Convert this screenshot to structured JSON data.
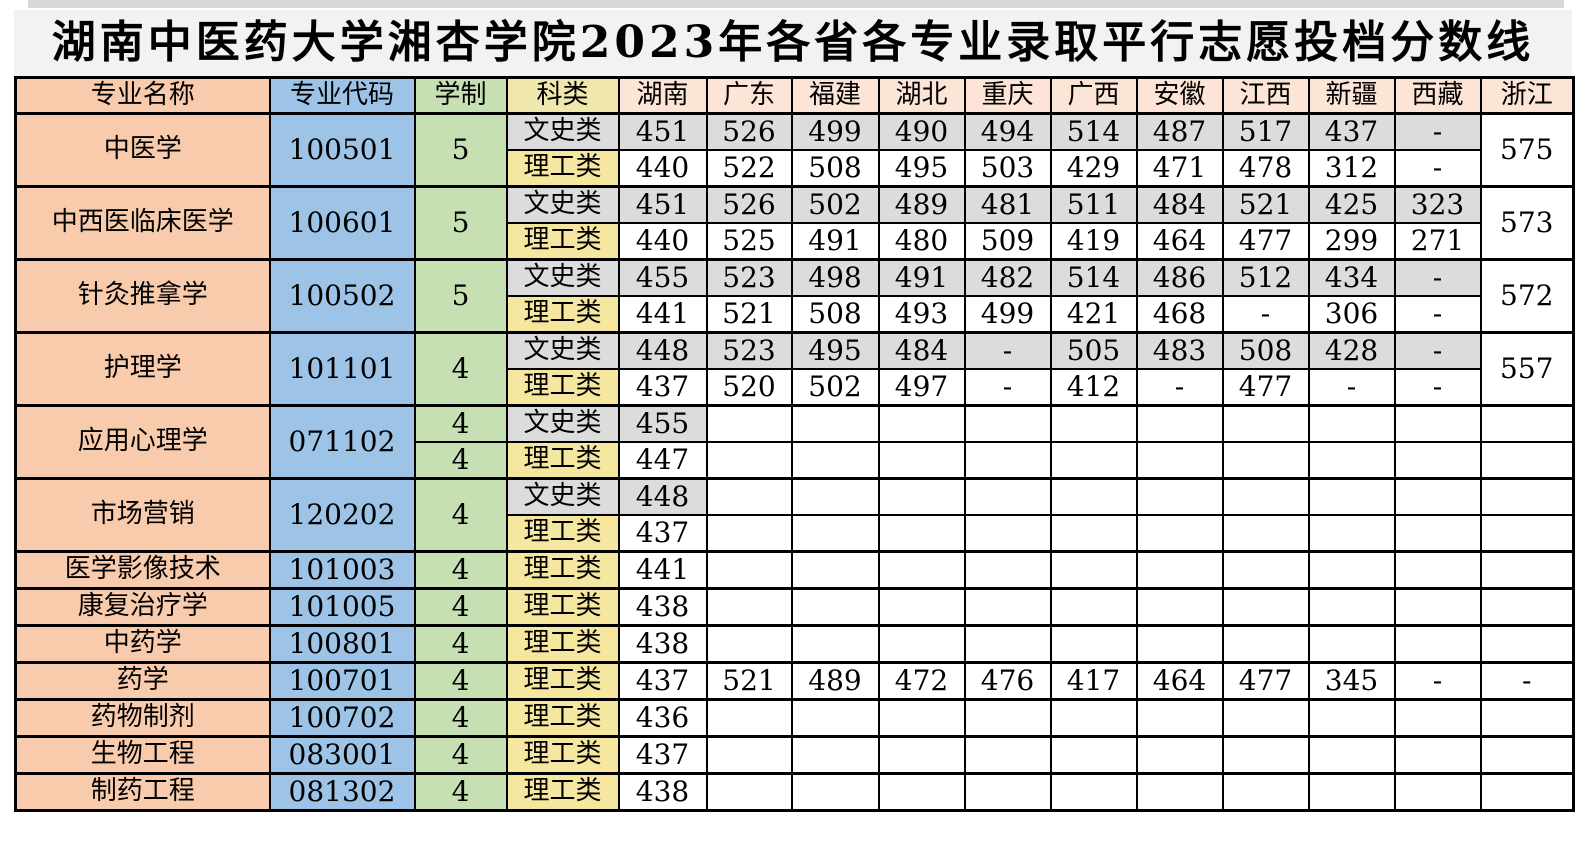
{
  "title": "湖南中医药大学湘杏学院2023年各省各专业录取平行志愿投档分数线",
  "header": {
    "cells": [
      "专业名称",
      "专业代码",
      "学制",
      "科类",
      "湖南",
      "广东",
      "福建",
      "湖北",
      "重庆",
      "广西",
      "安徽",
      "江西",
      "新疆",
      "西藏",
      "浙江"
    ]
  },
  "colors": {
    "major_name_bg": "#f8cbad",
    "major_code_bg": "#9dc3e6",
    "duration_bg": "#c6e0b4",
    "category_header_bg": "#efe7ad",
    "province_header_bg": "#fce4d6",
    "liberal_arts_bg": "#dcdcdc",
    "science_bg": "#f6e7a0",
    "title_bg": "#f2f2f2",
    "border": "#000000",
    "text": "#000000"
  },
  "majors": [
    {
      "name": "中医学",
      "code": "100501",
      "durations": [
        "5"
      ],
      "duration_merged": true,
      "zj_merged": true,
      "zj_values": [
        "575"
      ],
      "rows": [
        {
          "category": "文史类",
          "type": "wenshi",
          "scores": [
            "451",
            "526",
            "499",
            "490",
            "494",
            "514",
            "487",
            "517",
            "437",
            "-"
          ]
        },
        {
          "category": "理工类",
          "type": "ligong",
          "scores": [
            "440",
            "522",
            "508",
            "495",
            "503",
            "429",
            "471",
            "478",
            "312",
            "-"
          ]
        }
      ]
    },
    {
      "name": "中西医临床医学",
      "code": "100601",
      "durations": [
        "5"
      ],
      "duration_merged": true,
      "zj_merged": true,
      "zj_values": [
        "573"
      ],
      "rows": [
        {
          "category": "文史类",
          "type": "wenshi",
          "scores": [
            "451",
            "526",
            "502",
            "489",
            "481",
            "511",
            "484",
            "521",
            "425",
            "323"
          ]
        },
        {
          "category": "理工类",
          "type": "ligong",
          "scores": [
            "440",
            "525",
            "491",
            "480",
            "509",
            "419",
            "464",
            "477",
            "299",
            "271"
          ]
        }
      ]
    },
    {
      "name": "针灸推拿学",
      "code": "100502",
      "durations": [
        "5"
      ],
      "duration_merged": true,
      "zj_merged": true,
      "zj_values": [
        "572"
      ],
      "rows": [
        {
          "category": "文史类",
          "type": "wenshi",
          "scores": [
            "455",
            "523",
            "498",
            "491",
            "482",
            "514",
            "486",
            "512",
            "434",
            "-"
          ]
        },
        {
          "category": "理工类",
          "type": "ligong",
          "scores": [
            "441",
            "521",
            "508",
            "493",
            "499",
            "421",
            "468",
            "-",
            "306",
            "-"
          ]
        }
      ]
    },
    {
      "name": "护理学",
      "code": "101101",
      "durations": [
        "4"
      ],
      "duration_merged": true,
      "zj_merged": true,
      "zj_values": [
        "557"
      ],
      "rows": [
        {
          "category": "文史类",
          "type": "wenshi",
          "scores": [
            "448",
            "523",
            "495",
            "484",
            "-",
            "505",
            "483",
            "508",
            "428",
            "-"
          ]
        },
        {
          "category": "理工类",
          "type": "ligong",
          "scores": [
            "437",
            "520",
            "502",
            "497",
            "-",
            "412",
            "-",
            "477",
            "-",
            "-"
          ]
        }
      ]
    },
    {
      "name": "应用心理学",
      "code": "071102",
      "durations": [
        "4",
        "4"
      ],
      "duration_merged": false,
      "zj_merged": false,
      "zj_values": [
        "",
        ""
      ],
      "rows": [
        {
          "category": "文史类",
          "type": "wenshi",
          "scores": [
            "455",
            "",
            "",
            "",
            "",
            "",
            "",
            "",
            "",
            ""
          ]
        },
        {
          "category": "理工类",
          "type": "ligong",
          "scores": [
            "447",
            "",
            "",
            "",
            "",
            "",
            "",
            "",
            "",
            ""
          ]
        }
      ]
    },
    {
      "name": "市场营销",
      "code": "120202",
      "durations": [
        "4"
      ],
      "duration_merged": true,
      "zj_merged": false,
      "zj_values": [
        "",
        ""
      ],
      "rows": [
        {
          "category": "文史类",
          "type": "wenshi",
          "scores": [
            "448",
            "",
            "",
            "",
            "",
            "",
            "",
            "",
            "",
            ""
          ]
        },
        {
          "category": "理工类",
          "type": "ligong",
          "scores": [
            "437",
            "",
            "",
            "",
            "",
            "",
            "",
            "",
            "",
            ""
          ]
        }
      ]
    },
    {
      "name": "医学影像技术",
      "code": "101003",
      "durations": [
        "4"
      ],
      "duration_merged": true,
      "zj_merged": false,
      "zj_values": [
        ""
      ],
      "rows": [
        {
          "category": "理工类",
          "type": "ligong",
          "scores": [
            "441",
            "",
            "",
            "",
            "",
            "",
            "",
            "",
            "",
            ""
          ]
        }
      ]
    },
    {
      "name": "康复治疗学",
      "code": "101005",
      "durations": [
        "4"
      ],
      "duration_merged": true,
      "zj_merged": false,
      "zj_values": [
        ""
      ],
      "rows": [
        {
          "category": "理工类",
          "type": "ligong",
          "scores": [
            "438",
            "",
            "",
            "",
            "",
            "",
            "",
            "",
            "",
            ""
          ]
        }
      ]
    },
    {
      "name": "中药学",
      "code": "100801",
      "durations": [
        "4"
      ],
      "duration_merged": true,
      "zj_merged": false,
      "zj_values": [
        ""
      ],
      "rows": [
        {
          "category": "理工类",
          "type": "ligong",
          "scores": [
            "438",
            "",
            "",
            "",
            "",
            "",
            "",
            "",
            "",
            ""
          ]
        }
      ]
    },
    {
      "name": "药学",
      "code": "100701",
      "durations": [
        "4"
      ],
      "duration_merged": true,
      "zj_merged": false,
      "zj_values": [
        "-"
      ],
      "rows": [
        {
          "category": "理工类",
          "type": "ligong",
          "scores": [
            "437",
            "521",
            "489",
            "472",
            "476",
            "417",
            "464",
            "477",
            "345",
            "-"
          ]
        }
      ]
    },
    {
      "name": "药物制剂",
      "code": "100702",
      "durations": [
        "4"
      ],
      "duration_merged": true,
      "zj_merged": false,
      "zj_values": [
        ""
      ],
      "rows": [
        {
          "category": "理工类",
          "type": "ligong",
          "scores": [
            "436",
            "",
            "",
            "",
            "",
            "",
            "",
            "",
            "",
            ""
          ]
        }
      ]
    },
    {
      "name": "生物工程",
      "code": "083001",
      "durations": [
        "4"
      ],
      "duration_merged": true,
      "zj_merged": false,
      "zj_values": [
        ""
      ],
      "rows": [
        {
          "category": "理工类",
          "type": "ligong",
          "scores": [
            "437",
            "",
            "",
            "",
            "",
            "",
            "",
            "",
            "",
            ""
          ]
        }
      ]
    },
    {
      "name": "制药工程",
      "code": "081302",
      "durations": [
        "4"
      ],
      "duration_merged": true,
      "zj_merged": false,
      "zj_values": [
        ""
      ],
      "rows": [
        {
          "category": "理工类",
          "type": "ligong",
          "scores": [
            "438",
            "",
            "",
            "",
            "",
            "",
            "",
            "",
            "",
            ""
          ]
        }
      ]
    }
  ],
  "chart_data": {
    "type": "table",
    "title": "湖南中医药大学湘杏学院2023年各省各专业录取平行志愿投档分数线",
    "columns": [
      "专业名称",
      "专业代码",
      "学制",
      "科类",
      "湖南",
      "广东",
      "福建",
      "湖北",
      "重庆",
      "广西",
      "安徽",
      "江西",
      "新疆",
      "西藏",
      "浙江"
    ],
    "rows": [
      [
        "中医学",
        "100501",
        "5",
        "文史类",
        "451",
        "526",
        "499",
        "490",
        "494",
        "514",
        "487",
        "517",
        "437",
        "-",
        "575"
      ],
      [
        "中医学",
        "100501",
        "5",
        "理工类",
        "440",
        "522",
        "508",
        "495",
        "503",
        "429",
        "471",
        "478",
        "312",
        "-",
        "575"
      ],
      [
        "中西医临床医学",
        "100601",
        "5",
        "文史类",
        "451",
        "526",
        "502",
        "489",
        "481",
        "511",
        "484",
        "521",
        "425",
        "323",
        "573"
      ],
      [
        "中西医临床医学",
        "100601",
        "5",
        "理工类",
        "440",
        "525",
        "491",
        "480",
        "509",
        "419",
        "464",
        "477",
        "299",
        "271",
        "573"
      ],
      [
        "针灸推拿学",
        "100502",
        "5",
        "文史类",
        "455",
        "523",
        "498",
        "491",
        "482",
        "514",
        "486",
        "512",
        "434",
        "-",
        "572"
      ],
      [
        "针灸推拿学",
        "100502",
        "5",
        "理工类",
        "441",
        "521",
        "508",
        "493",
        "499",
        "421",
        "468",
        "-",
        "306",
        "-",
        "572"
      ],
      [
        "护理学",
        "101101",
        "4",
        "文史类",
        "448",
        "523",
        "495",
        "484",
        "-",
        "505",
        "483",
        "508",
        "428",
        "-",
        "557"
      ],
      [
        "护理学",
        "101101",
        "4",
        "理工类",
        "437",
        "520",
        "502",
        "497",
        "-",
        "412",
        "-",
        "477",
        "-",
        "-",
        "557"
      ],
      [
        "应用心理学",
        "071102",
        "4",
        "文史类",
        "455",
        "",
        "",
        "",
        "",
        "",
        "",
        "",
        "",
        "",
        ""
      ],
      [
        "应用心理学",
        "071102",
        "4",
        "理工类",
        "447",
        "",
        "",
        "",
        "",
        "",
        "",
        "",
        "",
        "",
        ""
      ],
      [
        "市场营销",
        "120202",
        "4",
        "文史类",
        "448",
        "",
        "",
        "",
        "",
        "",
        "",
        "",
        "",
        "",
        ""
      ],
      [
        "市场营销",
        "120202",
        "4",
        "理工类",
        "437",
        "",
        "",
        "",
        "",
        "",
        "",
        "",
        "",
        "",
        ""
      ],
      [
        "医学影像技术",
        "101003",
        "4",
        "理工类",
        "441",
        "",
        "",
        "",
        "",
        "",
        "",
        "",
        "",
        "",
        ""
      ],
      [
        "康复治疗学",
        "101005",
        "4",
        "理工类",
        "438",
        "",
        "",
        "",
        "",
        "",
        "",
        "",
        "",
        "",
        ""
      ],
      [
        "中药学",
        "100801",
        "4",
        "理工类",
        "438",
        "",
        "",
        "",
        "",
        "",
        "",
        "",
        "",
        "",
        ""
      ],
      [
        "药学",
        "100701",
        "4",
        "理工类",
        "437",
        "521",
        "489",
        "472",
        "476",
        "417",
        "464",
        "477",
        "345",
        "-",
        "-"
      ],
      [
        "药物制剂",
        "100702",
        "4",
        "理工类",
        "436",
        "",
        "",
        "",
        "",
        "",
        "",
        "",
        "",
        "",
        ""
      ],
      [
        "生物工程",
        "083001",
        "4",
        "理工类",
        "437",
        "",
        "",
        "",
        "",
        "",
        "",
        "",
        "",
        "",
        ""
      ],
      [
        "制药工程",
        "081302",
        "4",
        "理工类",
        "438",
        "",
        "",
        "",
        "",
        "",
        "",
        "",
        "",
        "",
        ""
      ]
    ]
  }
}
